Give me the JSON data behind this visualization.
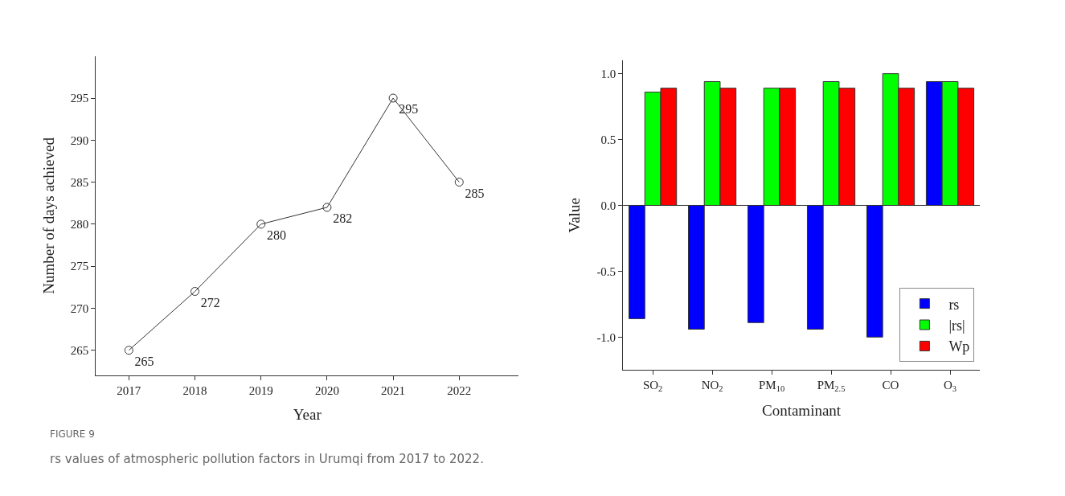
{
  "chart_data": [
    {
      "type": "line",
      "xlabel": "Year",
      "ylabel": "Number of days achieved",
      "x": [
        2017,
        2018,
        2019,
        2020,
        2021,
        2022
      ],
      "series": [
        {
          "color": "#333333",
          "values": [
            265,
            272,
            280,
            282,
            295,
            285
          ]
        }
      ],
      "xlim": [
        2016.5,
        2022.9
      ],
      "xticks": [
        2017,
        2018,
        2019,
        2020,
        2021,
        2022
      ],
      "ylim": [
        262,
        300
      ],
      "yticks": [
        265,
        270,
        275,
        280,
        285,
        290,
        295
      ],
      "data_labels": true,
      "marker": "circle",
      "annotations": [
        "FIGURE 9",
        "rs values of atmospheric pollution factors in Urumqi from 2017 to 2022."
      ]
    },
    {
      "type": "bar",
      "xlabel": "Contaminant",
      "ylabel": "Value",
      "categories": [
        "SO$_{2}$",
        "NO$_{2}$",
        "PM$_{10}$",
        "PM$_{2.5}$",
        "CO",
        "O$_{3}$"
      ],
      "series": [
        {
          "name": "rs",
          "color": "#0000ff",
          "values": [
            -0.86,
            -0.94,
            -0.89,
            -0.94,
            -1.0,
            0.94
          ]
        },
        {
          "name": "|rs|",
          "color": "#00ff00",
          "values": [
            0.86,
            0.94,
            0.89,
            0.94,
            1.0,
            0.94
          ]
        },
        {
          "name": "Wp",
          "color": "#ff0000",
          "values": [
            0.89,
            0.89,
            0.89,
            0.89,
            0.89,
            0.89
          ]
        }
      ],
      "ylim": [
        -1.25,
        1.1
      ],
      "yticks": [
        {
          "value": -1.0,
          "label": "-1.0"
        },
        {
          "value": -0.5,
          "label": "-0.5"
        },
        {
          "value": 0.0,
          "label": "0.0"
        },
        {
          "value": 0.5,
          "label": "0.5"
        },
        {
          "value": 1.0,
          "label": "1.0"
        }
      ],
      "legend": "bottom right",
      "ref_lines": [
        {
          "axis": "y",
          "value": 0,
          "color": "#333333"
        }
      ]
    }
  ]
}
